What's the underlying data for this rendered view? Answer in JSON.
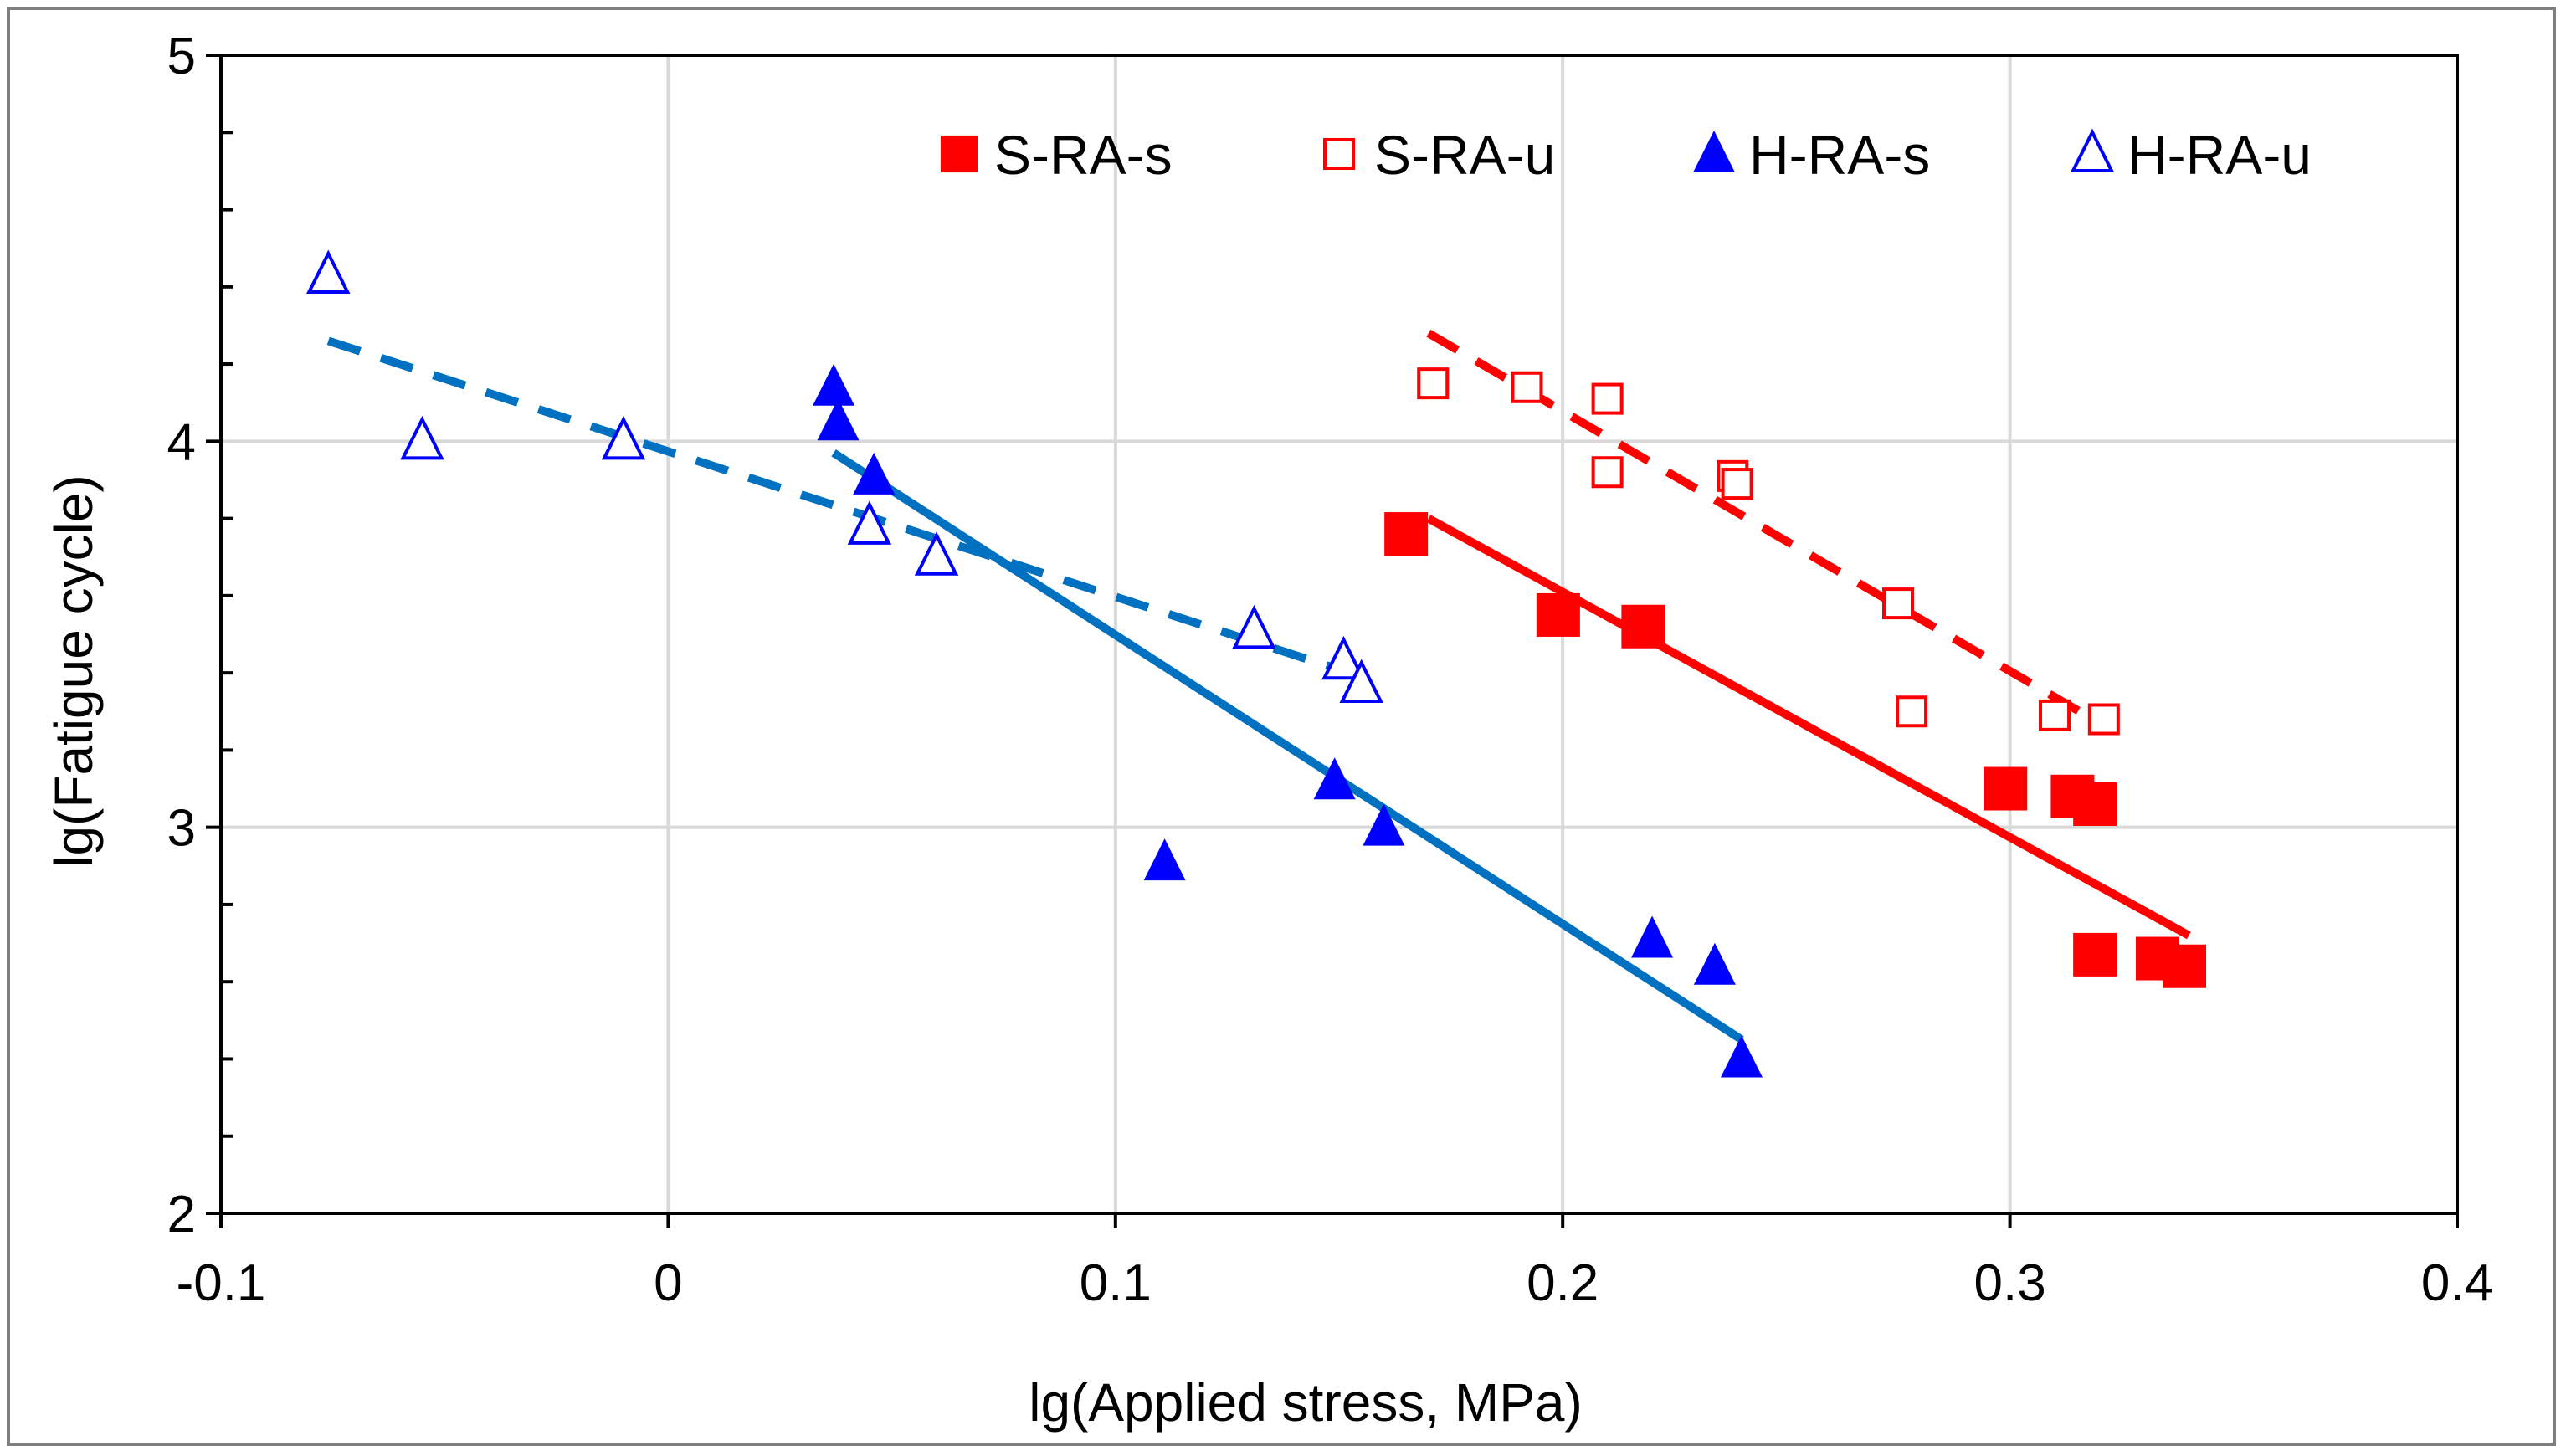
{
  "chart_data": {
    "type": "scatter",
    "title": "",
    "xlabel": "lg(Applied  stress, MPa)",
    "ylabel": "lg(Fatigue  cycle)",
    "xlim": [
      -0.1,
      0.4
    ],
    "ylim": [
      2,
      5
    ],
    "xticks": [
      -0.1,
      0,
      0.1,
      0.2,
      0.3,
      0.4
    ],
    "xtick_labels": [
      "-0.1",
      "0",
      "0.1",
      "0.2",
      "0.3",
      "0.4"
    ],
    "yticks": [
      2,
      3,
      4,
      5
    ],
    "ytick_labels": [
      "2",
      "3",
      "4",
      "5"
    ],
    "grid": true,
    "legend_position": "top-right",
    "series": [
      {
        "name": "S-RA-s",
        "marker": "square-filled",
        "color": "#ff0000",
        "points": [
          [
            0.165,
            3.76
          ],
          [
            0.199,
            3.55
          ],
          [
            0.218,
            3.52
          ],
          [
            0.299,
            3.1
          ],
          [
            0.314,
            3.08
          ],
          [
            0.319,
            3.06
          ],
          [
            0.319,
            2.67
          ],
          [
            0.333,
            2.66
          ],
          [
            0.339,
            2.64
          ]
        ],
        "trendline": {
          "style": "solid",
          "from": [
            0.17,
            3.8
          ],
          "to": [
            0.34,
            2.72
          ]
        }
      },
      {
        "name": "S-RA-u",
        "marker": "square-open",
        "color": "#ff0000",
        "points": [
          [
            0.171,
            4.15
          ],
          [
            0.192,
            4.14
          ],
          [
            0.21,
            4.11
          ],
          [
            0.21,
            3.92
          ],
          [
            0.238,
            3.91
          ],
          [
            0.239,
            3.89
          ],
          [
            0.275,
            3.58
          ],
          [
            0.278,
            3.3
          ],
          [
            0.31,
            3.29
          ],
          [
            0.321,
            3.28
          ]
        ],
        "trendline": {
          "style": "dashed",
          "from": [
            0.17,
            4.28
          ],
          "to": [
            0.32,
            3.27
          ]
        }
      },
      {
        "name": "H-RA-s",
        "marker": "triangle-filled",
        "color": "#0000ff",
        "points": [
          [
            0.037,
            4.14
          ],
          [
            0.038,
            4.05
          ],
          [
            0.046,
            3.91
          ],
          [
            0.149,
            3.12
          ],
          [
            0.16,
            3.0
          ],
          [
            0.111,
            2.91
          ],
          [
            0.22,
            2.71
          ],
          [
            0.234,
            2.64
          ],
          [
            0.24,
            2.4
          ]
        ],
        "trendline": {
          "style": "solid",
          "color": "#0070c0",
          "from": [
            0.037,
            3.97
          ],
          "to": [
            0.24,
            2.45
          ]
        }
      },
      {
        "name": "H-RA-u",
        "marker": "triangle-open",
        "color": "#0000ff",
        "points": [
          [
            -0.076,
            4.43
          ],
          [
            -0.055,
            4.0
          ],
          [
            -0.01,
            4.0
          ],
          [
            0.045,
            3.78
          ],
          [
            0.06,
            3.7
          ],
          [
            0.131,
            3.51
          ],
          [
            0.151,
            3.43
          ],
          [
            0.155,
            3.37
          ]
        ],
        "trendline": {
          "style": "dashed",
          "color": "#0070c0",
          "from": [
            -0.076,
            4.26
          ],
          "to": [
            0.155,
            3.39
          ]
        }
      }
    ]
  }
}
